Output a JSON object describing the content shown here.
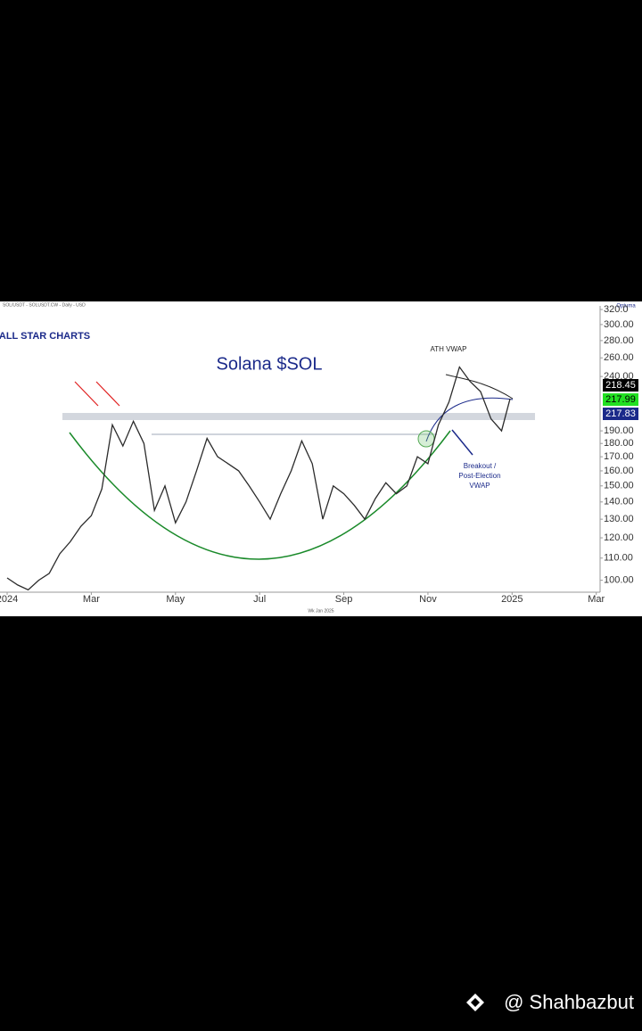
{
  "chart_data": {
    "type": "line",
    "title": "Solana $SOL",
    "source_label": "SOL/USDT - SOLUSDT.CW - Daily - USD",
    "brand": "ALL STAR CHARTS",
    "provider": "Optuma",
    "footer_label": "Wk Jan 2025",
    "annotations": [
      "ATH VWAP",
      "Breakout /",
      "Post-Election",
      "VWAP"
    ],
    "price_badges": [
      218.45,
      217.99,
      217.83
    ],
    "watermark": "@ Shahbazbut",
    "log_scale": true,
    "color": "#2b2b2b",
    "x": [
      0,
      0.25,
      0.5,
      0.75,
      1,
      1.25,
      1.5,
      1.75,
      2,
      2.25,
      2.5,
      2.75,
      3,
      3.25,
      3.5,
      3.75,
      4,
      4.25,
      4.5,
      4.75,
      5,
      5.25,
      5.5,
      5.75,
      6,
      6.25,
      6.5,
      6.75,
      7,
      7.25,
      7.5,
      7.75,
      8,
      8.25,
      8.5,
      8.75,
      9,
      9.25,
      9.5,
      9.75,
      10,
      10.25,
      10.5,
      10.75,
      11,
      11.25,
      11.5,
      11.75,
      11.95
    ],
    "values": [
      101,
      98,
      96,
      100,
      103,
      112,
      118,
      126,
      132,
      148,
      195,
      178,
      198,
      180,
      135,
      150,
      128,
      140,
      160,
      184,
      170,
      165,
      160,
      150,
      140,
      130,
      145,
      160,
      182,
      165,
      130,
      150,
      145,
      138,
      130,
      142,
      152,
      145,
      150,
      170,
      165,
      195,
      215,
      250,
      235,
      225,
      200,
      190,
      218
    ],
    "xlim": [
      -0.17,
      14.07
    ],
    "xticks": [
      {
        "value": 0,
        "label": "2024"
      },
      {
        "value": 2,
        "label": "Mar"
      },
      {
        "value": 4,
        "label": "May"
      },
      {
        "value": 6,
        "label": "Jul"
      },
      {
        "value": 8,
        "label": "Sep"
      },
      {
        "value": 10,
        "label": "Nov"
      },
      {
        "value": 12,
        "label": "2025"
      },
      {
        "value": 14,
        "label": "Mar"
      }
    ],
    "ylim": [
      95,
      325
    ],
    "yticks": [
      {
        "value": 100,
        "label": "100.00"
      },
      {
        "value": 110,
        "label": "110.00"
      },
      {
        "value": 120,
        "label": "120.00"
      },
      {
        "value": 130,
        "label": "130.00"
      },
      {
        "value": 140,
        "label": "140.00"
      },
      {
        "value": 150,
        "label": "150.00"
      },
      {
        "value": 160,
        "label": "160.00"
      },
      {
        "value": 170,
        "label": "170.00"
      },
      {
        "value": 180,
        "label": "180.00"
      },
      {
        "value": 190,
        "label": "190.00"
      },
      {
        "value": 240,
        "label": "240.00"
      },
      {
        "value": 260,
        "label": "260.00"
      },
      {
        "value": 280,
        "label": "280.00"
      },
      {
        "value": 300,
        "label": "300.00"
      },
      {
        "value": 320,
        "label": "320.0"
      }
    ]
  }
}
